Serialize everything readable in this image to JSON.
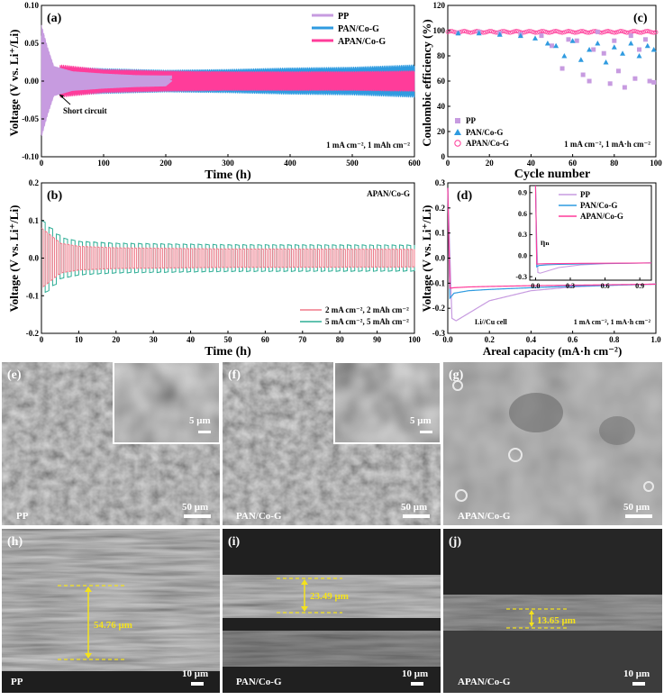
{
  "panel_a": {
    "tag": "(a)",
    "ylabel": "Voltage (V vs. Li⁺/Li)",
    "xlabel": "Time (h)",
    "legend": [
      "PP",
      "PAN/Co-G",
      "APAN/Co-G"
    ],
    "condition": "1 mA cm⁻², 1 mAh cm⁻²",
    "annotation": "Short circuit",
    "xticks": [
      "0",
      "100",
      "200",
      "300",
      "400",
      "500",
      "600"
    ],
    "yticks": [
      "-0.10",
      "-0.05",
      "0.00",
      "0.05",
      "0.10"
    ]
  },
  "panel_b": {
    "tag": "(b)",
    "title": "APAN/Co-G",
    "ylabel": "Voltage (V vs. Li⁺/Li)",
    "xlabel": "Time (h)",
    "legend": [
      "2 mA cm⁻², 2 mAh cm⁻²",
      "5 mA cm⁻², 5 mAh cm⁻²"
    ],
    "xticks": [
      "0",
      "10",
      "20",
      "30",
      "40",
      "50",
      "60",
      "70",
      "80",
      "90",
      "100"
    ],
    "yticks": [
      "-0.2",
      "-0.1",
      "0.0",
      "0.1",
      "0.2"
    ]
  },
  "panel_c": {
    "tag": "(c)",
    "ylabel": "Coulombic efficiency (%)",
    "xlabel": "Cycle number",
    "legend": [
      "PP",
      "PAN/Co-G",
      "APAN/Co-G"
    ],
    "condition": "1 mA cm⁻², 1 mA·h cm⁻²",
    "xticks": [
      "0",
      "20",
      "40",
      "60",
      "80",
      "100"
    ],
    "yticks": [
      "0",
      "20",
      "40",
      "60",
      "80",
      "100",
      "120"
    ]
  },
  "panel_d": {
    "tag": "(d)",
    "ylabel": "Voltage (V vs. Li⁺/Li)",
    "xlabel": "Areal capacity (mA·h cm⁻²)",
    "legend": [
      "PP",
      "PAN/Co-G",
      "APAN/Co-G"
    ],
    "cell": "Li//Cu cell",
    "condition": "1 mA cm⁻², 1 mA·h cm⁻²",
    "eta": "ηₙ",
    "xticks": [
      "0.0",
      "0.2",
      "0.4",
      "0.6",
      "0.8",
      "1.0"
    ],
    "yticks": [
      "-0.3",
      "-0.2",
      "-0.1",
      "0.0",
      "0.1",
      "0.2",
      "0.3"
    ],
    "inset_xticks": [
      "0.0",
      "0.3",
      "0.6",
      "0.9"
    ],
    "inset_yticks": [
      "-0.3",
      "0.0",
      "0.3",
      "0.6",
      "0.9"
    ]
  },
  "sem": {
    "e": {
      "tag": "(e)",
      "sample": "PP",
      "scale": "50 μm",
      "inset_scale": "5 μm"
    },
    "f": {
      "tag": "(f)",
      "sample": "PAN/Co-G",
      "scale": "50 μm",
      "inset_scale": "5 μm"
    },
    "g": {
      "tag": "(g)",
      "sample": "APAN/Co-G",
      "scale": "50 μm"
    },
    "h": {
      "tag": "(h)",
      "sample": "PP",
      "scale": "10 μm",
      "thickness": "54.76 μm"
    },
    "i": {
      "tag": "(i)",
      "sample": "PAN/Co-G",
      "scale": "10 μm",
      "thickness": "23.49 μm"
    },
    "j": {
      "tag": "(j)",
      "sample": "APAN/Co-G",
      "scale": "10 μm",
      "thickness": "13.65 μm"
    }
  },
  "colors": {
    "pp": "#c79be0",
    "pan": "#2f9be0",
    "apan": "#ff3c9a",
    "b2": "#f07a8a",
    "b5": "#2fae96"
  },
  "chart_data": [
    {
      "type": "line",
      "panel": "a",
      "xlim": [
        0,
        600
      ],
      "ylim": [
        -0.1,
        0.1
      ],
      "series": [
        {
          "name": "PP",
          "x": [
            0,
            5,
            10,
            20,
            50,
            100,
            150,
            200,
            210
          ],
          "amplitude": [
            0.075,
            0.06,
            0.045,
            0.02,
            0.013,
            0.01,
            0.008,
            0.007,
            0.0
          ]
        },
        {
          "name": "PAN/Co-G",
          "x": [
            30,
            100,
            200,
            300,
            400,
            500,
            600
          ],
          "amplitude": [
            0.02,
            0.017,
            0.015,
            0.016,
            0.018,
            0.019,
            0.022
          ]
        },
        {
          "name": "APAN/Co-G",
          "x": [
            30,
            100,
            200,
            300,
            400,
            500,
            600
          ],
          "amplitude": [
            0.022,
            0.016,
            0.014,
            0.013,
            0.013,
            0.013,
            0.014
          ]
        }
      ]
    },
    {
      "type": "line",
      "panel": "b",
      "xlim": [
        0,
        100
      ],
      "ylim": [
        -0.2,
        0.2
      ],
      "series": [
        {
          "name": "2 mA cm⁻², 2 mAh cm⁻²",
          "x": [
            0,
            5,
            10,
            20,
            50,
            100
          ],
          "amplitude": [
            0.08,
            0.04,
            0.032,
            0.028,
            0.025,
            0.024
          ]
        },
        {
          "name": "5 mA cm⁻², 5 mAh cm⁻²",
          "x": [
            0,
            5,
            10,
            20,
            50,
            100
          ],
          "amplitude": [
            0.1,
            0.055,
            0.045,
            0.04,
            0.036,
            0.035
          ]
        }
      ]
    },
    {
      "type": "scatter",
      "panel": "c",
      "xlim": [
        0,
        100
      ],
      "ylim": [
        0,
        120
      ],
      "series": [
        {
          "name": "PP",
          "x": [
            5,
            15,
            25,
            35,
            45,
            50,
            55,
            58,
            62,
            65,
            68,
            70,
            72,
            75,
            78,
            80,
            82,
            85,
            88,
            90,
            92,
            95,
            97,
            99
          ],
          "values": [
            98,
            99,
            98,
            97,
            96,
            88,
            70,
            93,
            92,
            65,
            60,
            85,
            99,
            82,
            58,
            92,
            68,
            55,
            96,
            62,
            85,
            93,
            60,
            59
          ]
        },
        {
          "name": "PAN/Co-G",
          "x": [
            5,
            15,
            25,
            35,
            42,
            48,
            52,
            56,
            60,
            64,
            68,
            72,
            76,
            80,
            84,
            88,
            92,
            96,
            99
          ],
          "values": [
            98,
            98,
            97,
            96,
            94,
            90,
            88,
            80,
            92,
            77,
            85,
            90,
            75,
            87,
            82,
            90,
            80,
            88,
            85
          ]
        },
        {
          "name": "APAN/Co-G",
          "x": [
            5,
            15,
            25,
            35,
            45,
            55,
            65,
            75,
            85,
            95,
            99
          ],
          "values": [
            99,
            99,
            99,
            99,
            99,
            99,
            99,
            99,
            99,
            99,
            99
          ]
        }
      ]
    },
    {
      "type": "line",
      "panel": "d",
      "xlim": [
        0,
        1.0
      ],
      "ylim": [
        -0.3,
        0.3
      ],
      "series": [
        {
          "name": "PP",
          "x": [
            0.0,
            0.02,
            0.04,
            0.1,
            0.2,
            0.4,
            0.6,
            0.8,
            1.0
          ],
          "values": [
            0.28,
            -0.24,
            -0.25,
            -0.22,
            -0.17,
            -0.13,
            -0.115,
            -0.108,
            -0.103
          ]
        },
        {
          "name": "PAN/Co-G",
          "x": [
            0.0,
            0.01,
            0.03,
            0.1,
            0.2,
            0.4,
            0.6,
            0.8,
            1.0
          ],
          "values": [
            0.28,
            -0.16,
            -0.14,
            -0.13,
            -0.125,
            -0.118,
            -0.112,
            -0.108,
            -0.104
          ]
        },
        {
          "name": "APAN/Co-G",
          "x": [
            0.0,
            0.01,
            0.03,
            0.1,
            0.2,
            0.4,
            0.6,
            0.8,
            1.0
          ],
          "values": [
            0.28,
            -0.12,
            -0.118,
            -0.115,
            -0.113,
            -0.11,
            -0.108,
            -0.106,
            -0.104
          ]
        }
      ]
    }
  ]
}
